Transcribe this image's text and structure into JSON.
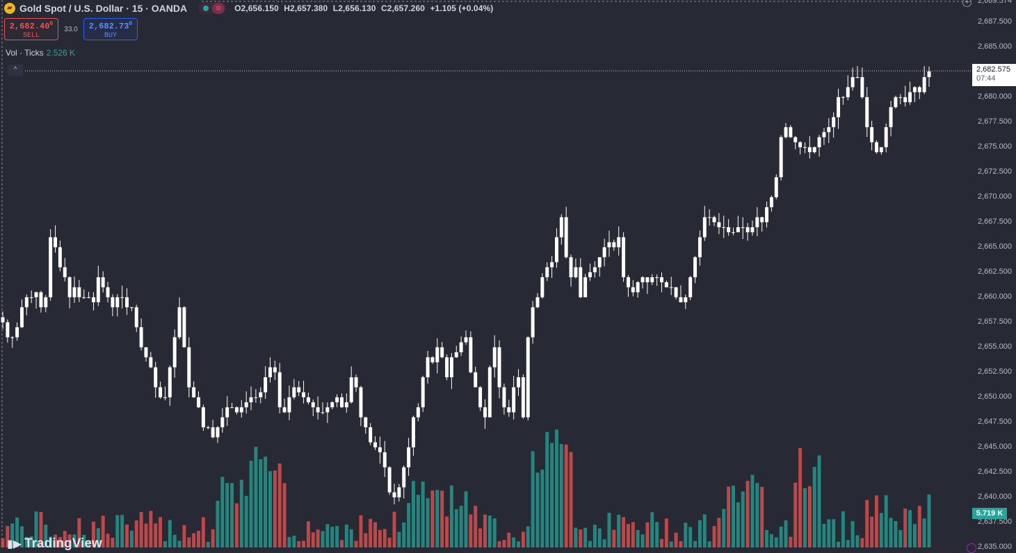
{
  "header": {
    "logo_icon": "gold-bars-icon",
    "title": "Gold Spot / U.S. Dollar · 15 · OANDA",
    "status_wave_icon": "≋",
    "ohlc": {
      "open": "O2,656.150",
      "high": "H2,657.380",
      "low": "L2,656.130",
      "close": "C2,657.260",
      "change": "+1.105 (+0.04%)"
    }
  },
  "trade": {
    "sell_price": "2,682.40",
    "sell_price_sup": "0",
    "sell_label": "SELL",
    "spread": "33.0",
    "buy_price": "2,682.73",
    "buy_price_sup": "0",
    "buy_label": "BUY"
  },
  "volume_legend": {
    "label": "Vol · Ticks",
    "value": "2.526 K"
  },
  "collapse_icon": "^",
  "watermark": "TradingView",
  "price_axis": {
    "ticks": [
      "2,689.574",
      "2,687.500",
      "2,685.000",
      "2,680.000",
      "2,677.500",
      "2,675.000",
      "2,672.500",
      "2,670.000",
      "2,667.500",
      "2,665.000",
      "2,662.500",
      "2,660.000",
      "2,657.500",
      "2,655.000",
      "2,652.500",
      "2,650.000",
      "2,647.500",
      "2,645.000",
      "2,642.500",
      "2,640.000",
      "2,637.500",
      "2,635.000"
    ],
    "current_price": "2,682.575",
    "countdown": "07:44",
    "volume_label": "5.719 K",
    "plus_icon": "+"
  },
  "colors": {
    "background": "#272a35",
    "candle": "#ffffff",
    "volume_up": "#26a69a",
    "volume_down": "#ef5350",
    "sell": "#ef5350",
    "buy": "#2962ff"
  },
  "chart_data": {
    "type": "candlestick",
    "symbol": "Gold Spot / U.S. Dollar",
    "interval": "15",
    "price_range": [
      2635.0,
      2689.574
    ],
    "closes": [
      2657.5,
      2656,
      2656,
      2657,
      2659,
      2660,
      2660,
      2660.5,
      2659,
      2660,
      2666,
      2665,
      2663,
      2662,
      2660,
      2661,
      2660,
      2660,
      2660,
      2659.5,
      2662,
      2661,
      2660,
      2659,
      2660,
      2660,
      2659,
      2659,
      2657,
      2655,
      2654,
      2653,
      2651,
      2650,
      2650,
      2653,
      2656,
      2659,
      2655,
      2651,
      2650,
      2649,
      2647,
      2647,
      2646,
      2647,
      2648,
      2649,
      2649,
      2648.5,
      2649,
      2649.5,
      2650,
      2650,
      2650.5,
      2652,
      2653,
      2652.5,
      2649,
      2648.5,
      2650,
      2651,
      2650.5,
      2650,
      2649.5,
      2649,
      2648.5,
      2648.5,
      2649,
      2649.5,
      2650,
      2649,
      2649.5,
      2652,
      2651,
      2648,
      2647,
      2645.5,
      2645,
      2644.5,
      2643,
      2640.5,
      2640,
      2641,
      2643,
      2645,
      2648,
      2649,
      2652,
      2654,
      2653.5,
      2655,
      2654,
      2652,
      2654,
      2654.5,
      2655.5,
      2656,
      2652.5,
      2651,
      2649,
      2648,
      2653,
      2655,
      2651,
      2649,
      2648.5,
      2651,
      2652,
      2648,
      2656,
      2659,
      2660,
      2662,
      2663,
      2663.5,
      2666,
      2668,
      2664,
      2662,
      2663,
      2660,
      2662,
      2662.5,
      2663,
      2664,
      2665,
      2665.5,
      2665,
      2666,
      2662,
      2661,
      2660.5,
      2661.5,
      2662,
      2661.5,
      2662,
      2662,
      2661.5,
      2661,
      2661,
      2660,
      2659.5,
      2660,
      2662,
      2664,
      2666,
      2668,
      2668,
      2667.5,
      2667,
      2667,
      2666.5,
      2666.5,
      2667,
      2667,
      2666.5,
      2667,
      2668,
      2667.5,
      2669,
      2670,
      2672,
      2676,
      2677,
      2676,
      2675.5,
      2675,
      2675,
      2674.5,
      2675,
      2676,
      2676.5,
      2677,
      2678,
      2680,
      2680,
      2681,
      2682,
      2682,
      2680,
      2677,
      2675.5,
      2674.5,
      2675,
      2677,
      2679,
      2680,
      2680,
      2679.5,
      2680.5,
      2681,
      2680.5,
      2682,
      2682.575
    ],
    "volumes_relative": "volume histogram under candles, teal = up, red = down",
    "last_price": "2,682.575",
    "last_volume": "5.719 K"
  }
}
